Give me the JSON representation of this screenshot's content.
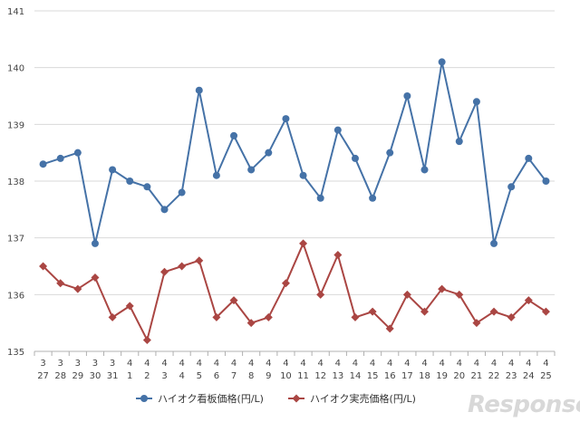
{
  "chart_data": {
    "type": "line",
    "title": "",
    "xlabel": "",
    "ylabel": "",
    "ylim": [
      135,
      141
    ],
    "yticks": [
      135,
      136,
      137,
      138,
      139,
      140,
      141
    ],
    "grid": "horizontal",
    "legend_position": "bottom",
    "categories": [
      [
        "3",
        "27"
      ],
      [
        "3",
        "28"
      ],
      [
        "3",
        "29"
      ],
      [
        "3",
        "30"
      ],
      [
        "3",
        "31"
      ],
      [
        "4",
        "1"
      ],
      [
        "4",
        "2"
      ],
      [
        "4",
        "3"
      ],
      [
        "4",
        "4"
      ],
      [
        "4",
        "5"
      ],
      [
        "4",
        "6"
      ],
      [
        "4",
        "7"
      ],
      [
        "4",
        "8"
      ],
      [
        "4",
        "9"
      ],
      [
        "4",
        "10"
      ],
      [
        "4",
        "11"
      ],
      [
        "4",
        "12"
      ],
      [
        "4",
        "13"
      ],
      [
        "4",
        "14"
      ],
      [
        "4",
        "15"
      ],
      [
        "4",
        "16"
      ],
      [
        "4",
        "17"
      ],
      [
        "4",
        "18"
      ],
      [
        "4",
        "19"
      ],
      [
        "4",
        "20"
      ],
      [
        "4",
        "21"
      ],
      [
        "4",
        "22"
      ],
      [
        "4",
        "23"
      ],
      [
        "4",
        "24"
      ],
      [
        "4",
        "25"
      ]
    ],
    "series": [
      {
        "name": "ハイオク看板価格(円/L)",
        "color": "#4572a7",
        "marker": "circle",
        "values": [
          138.3,
          138.4,
          138.5,
          136.9,
          138.2,
          138.0,
          137.9,
          137.5,
          137.8,
          139.6,
          138.1,
          138.8,
          138.2,
          138.5,
          139.1,
          138.1,
          137.7,
          138.9,
          138.4,
          137.7,
          138.5,
          139.5,
          138.2,
          140.1,
          138.7,
          139.4,
          136.9,
          137.9,
          138.4,
          138.0
        ]
      },
      {
        "name": "ハイオク実売価格(円/L)",
        "color": "#aa4643",
        "marker": "diamond",
        "values": [
          136.5,
          136.2,
          136.1,
          136.3,
          135.6,
          135.8,
          135.2,
          136.4,
          136.5,
          136.6,
          135.6,
          135.9,
          135.5,
          135.6,
          136.2,
          136.9,
          136.0,
          136.7,
          135.6,
          135.7,
          135.4,
          136.0,
          135.7,
          136.1,
          136.0,
          135.5,
          135.7,
          135.6,
          135.9,
          135.7
        ]
      }
    ]
  },
  "watermark": "Response."
}
